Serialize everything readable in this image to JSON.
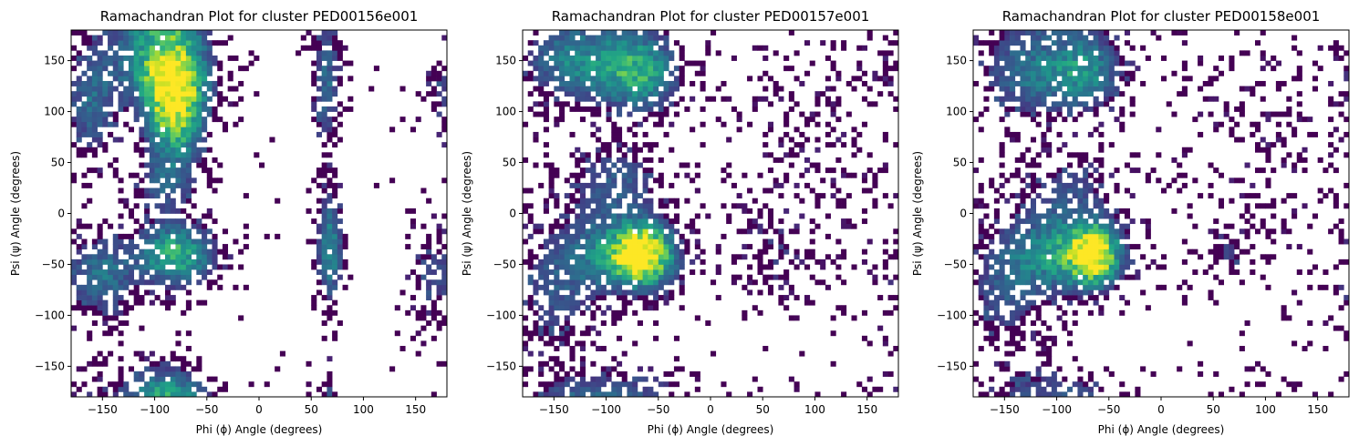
{
  "chart_data": [
    {
      "type": "heatmap",
      "title": "Ramachandran Plot for cluster PED00156e001",
      "xlabel": "Phi (ϕ) Angle (degrees)",
      "ylabel": "Psi (ψ) Angle (degrees)",
      "xlim": [
        -180,
        180
      ],
      "ylim": [
        -180,
        180
      ],
      "xticks": [
        -150,
        -100,
        -50,
        0,
        50,
        100,
        150
      ],
      "yticks": [
        -150,
        -100,
        -50,
        0,
        50,
        100,
        150
      ],
      "bin_size_degrees": 5,
      "colormap": "viridis",
      "empty_bins": "white",
      "grid": false,
      "density_regions": [
        {
          "phi": -80,
          "psi": 110,
          "sd_phi": 18,
          "sd_psi": 35,
          "weight": 1.0
        },
        {
          "phi": -95,
          "psi": 150,
          "sd_phi": 30,
          "sd_psi": 30,
          "weight": 0.55
        },
        {
          "phi": -80,
          "psi": -40,
          "sd_phi": 25,
          "sd_psi": 20,
          "weight": 0.6
        },
        {
          "phi": -90,
          "psi": 30,
          "sd_phi": 20,
          "sd_psi": 20,
          "weight": 0.25
        },
        {
          "phi": -150,
          "psi": -60,
          "sd_phi": 20,
          "sd_psi": 25,
          "weight": 0.35
        },
        {
          "phi": -160,
          "psi": 110,
          "sd_phi": 15,
          "sd_psi": 40,
          "weight": 0.3
        },
        {
          "phi": 68,
          "psi": -35,
          "sd_phi": 8,
          "sd_psi": 35,
          "weight": 0.45
        },
        {
          "phi": 65,
          "psi": 130,
          "sd_phi": 8,
          "sd_psi": 45,
          "weight": 0.3
        },
        {
          "phi": -90,
          "psi": -175,
          "sd_phi": 25,
          "sd_psi": 15,
          "weight": 0.2
        },
        {
          "phi": 165,
          "psi": -60,
          "sd_phi": 15,
          "sd_psi": 30,
          "weight": 0.15
        },
        {
          "phi": 170,
          "psi": 120,
          "sd_phi": 10,
          "sd_psi": 20,
          "weight": 0.1
        }
      ]
    },
    {
      "type": "heatmap",
      "title": "Ramachandran Plot for cluster PED00157e001",
      "xlabel": "Phi (ϕ) Angle (degrees)",
      "ylabel": "Psi (ψ) Angle (degrees)",
      "xlim": [
        -180,
        180
      ],
      "ylim": [
        -180,
        180
      ],
      "xticks": [
        -150,
        -100,
        -50,
        0,
        50,
        100,
        150
      ],
      "yticks": [
        -150,
        -100,
        -50,
        0,
        50,
        100,
        150
      ],
      "bin_size_degrees": 5,
      "colormap": "viridis",
      "empty_bins": "white",
      "grid": false,
      "density_regions": [
        {
          "phi": -65,
          "psi": -40,
          "sd_phi": 18,
          "sd_psi": 18,
          "weight": 1.0
        },
        {
          "phi": -90,
          "psi": -40,
          "sd_phi": 35,
          "sd_psi": 25,
          "weight": 0.45
        },
        {
          "phi": -70,
          "psi": 140,
          "sd_phi": 25,
          "sd_psi": 25,
          "weight": 0.6
        },
        {
          "phi": -130,
          "psi": 150,
          "sd_phi": 30,
          "sd_psi": 25,
          "weight": 0.4
        },
        {
          "phi": -90,
          "psi": 30,
          "sd_phi": 30,
          "sd_psi": 25,
          "weight": 0.25
        },
        {
          "phi": -150,
          "psi": -80,
          "sd_phi": 25,
          "sd_psi": 40,
          "weight": 0.2
        },
        {
          "phi": 60,
          "psi": -40,
          "sd_phi": 20,
          "sd_psi": 25,
          "weight": 0.1
        },
        {
          "phi": 100,
          "psi": 60,
          "sd_phi": 60,
          "sd_psi": 80,
          "weight": 0.05
        },
        {
          "phi": -100,
          "psi": -170,
          "sd_phi": 40,
          "sd_psi": 12,
          "weight": 0.12
        }
      ]
    },
    {
      "type": "heatmap",
      "title": "Ramachandran Plot for cluster PED00158e001",
      "xlabel": "Phi (ϕ) Angle (degrees)",
      "ylabel": "Psi (ψ) Angle (degrees)",
      "xlim": [
        -180,
        180
      ],
      "ylim": [
        -180,
        180
      ],
      "xticks": [
        -150,
        -100,
        -50,
        0,
        50,
        100,
        150
      ],
      "yticks": [
        -150,
        -100,
        -50,
        0,
        50,
        100,
        150
      ],
      "bin_size_degrees": 5,
      "colormap": "viridis",
      "empty_bins": "white",
      "grid": false,
      "density_regions": [
        {
          "phi": -65,
          "psi": -40,
          "sd_phi": 15,
          "sd_psi": 18,
          "weight": 1.0
        },
        {
          "phi": -95,
          "psi": -40,
          "sd_phi": 35,
          "sd_psi": 25,
          "weight": 0.5
        },
        {
          "phi": -75,
          "psi": 140,
          "sd_phi": 25,
          "sd_psi": 25,
          "weight": 0.45
        },
        {
          "phi": -130,
          "psi": 140,
          "sd_phi": 30,
          "sd_psi": 30,
          "weight": 0.3
        },
        {
          "phi": -90,
          "psi": 20,
          "sd_phi": 30,
          "sd_psi": 25,
          "weight": 0.2
        },
        {
          "phi": 65,
          "psi": -40,
          "sd_phi": 12,
          "sd_psi": 15,
          "weight": 0.15
        },
        {
          "phi": -150,
          "psi": -80,
          "sd_phi": 25,
          "sd_psi": 40,
          "weight": 0.2
        },
        {
          "phi": 90,
          "psi": 60,
          "sd_phi": 60,
          "sd_psi": 80,
          "weight": 0.05
        },
        {
          "phi": -100,
          "psi": -170,
          "sd_phi": 35,
          "sd_psi": 12,
          "weight": 0.12
        }
      ]
    }
  ]
}
